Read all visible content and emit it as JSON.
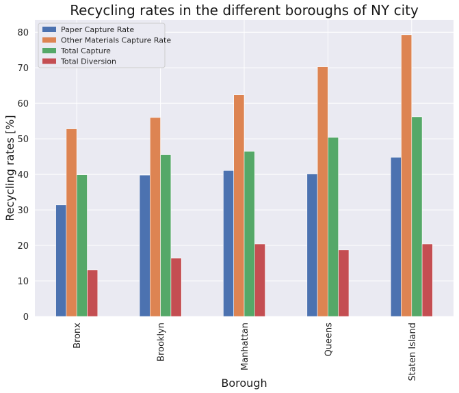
{
  "chart_data": {
    "type": "bar",
    "title": "Recycling rates in the different boroughs of NY city",
    "xlabel": "Borough",
    "ylabel": "Recycling rates [%]",
    "categories": [
      "Bronx",
      "Brooklyn",
      "Manhattan",
      "Queens",
      "Staten Island"
    ],
    "series": [
      {
        "name": "Paper Capture Rate",
        "color": "#4c72b0",
        "values": [
          31.4,
          39.8,
          41.1,
          40.1,
          44.8
        ]
      },
      {
        "name": "Other Materials Capture Rate",
        "color": "#dd8452",
        "values": [
          52.8,
          56.0,
          62.4,
          70.3,
          79.3
        ]
      },
      {
        "name": "Total Capture",
        "color": "#55a868",
        "values": [
          39.9,
          45.5,
          46.5,
          50.4,
          56.2
        ]
      },
      {
        "name": "Total Diversion",
        "color": "#c44e52",
        "values": [
          13.1,
          16.4,
          20.4,
          18.7,
          20.4
        ]
      }
    ],
    "ylim": [
      0,
      83.5
    ],
    "yticks": [
      0,
      10,
      20,
      30,
      40,
      50,
      60,
      70,
      80
    ],
    "grid": true,
    "background": "#eaeaf2",
    "legend_position": "top-left"
  }
}
